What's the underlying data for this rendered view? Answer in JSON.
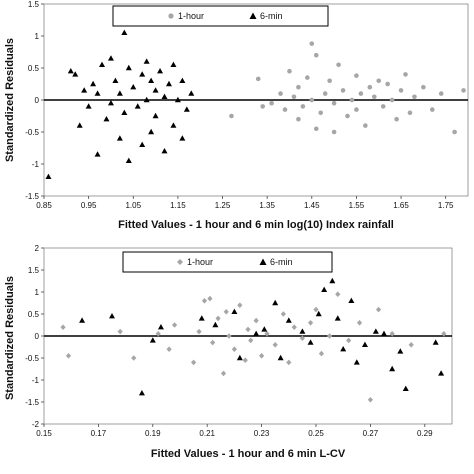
{
  "chart_data": [
    {
      "type": "scatter",
      "xlabel": "Fitted Values - 1 hour and 6 min log(10) Index rainfall",
      "ylabel": "Standardized Residuals",
      "xlim": [
        0.85,
        1.8
      ],
      "ylim": [
        -1.5,
        1.5
      ],
      "xticks": [
        "0.85",
        "0.95",
        "1.05",
        "1.15",
        "1.25",
        "1.35",
        "1.45",
        "1.55",
        "1.65",
        "1.75"
      ],
      "xtick_values": [
        0.85,
        0.95,
        1.05,
        1.15,
        1.25,
        1.35,
        1.45,
        1.55,
        1.65,
        1.75
      ],
      "yticks": [
        "1.5",
        "1",
        "0.5",
        "0",
        "-0.5",
        "-1",
        "-1.5"
      ],
      "ytick_values": [
        1.5,
        1,
        0.5,
        0,
        -0.5,
        -1,
        -1.5
      ],
      "grid": false,
      "legend_position": "top-center",
      "series": [
        {
          "name": "1-hour",
          "marker": "circle",
          "color": "#a6a6a6",
          "points": [
            [
              1.27,
              -0.25
            ],
            [
              1.33,
              0.33
            ],
            [
              1.34,
              -0.1
            ],
            [
              1.36,
              -0.05
            ],
            [
              1.38,
              0.1
            ],
            [
              1.39,
              -0.15
            ],
            [
              1.4,
              0.45
            ],
            [
              1.41,
              0.05
            ],
            [
              1.42,
              -0.3
            ],
            [
              1.42,
              0.2
            ],
            [
              1.43,
              -0.1
            ],
            [
              1.44,
              0.35
            ],
            [
              1.45,
              0.88
            ],
            [
              1.45,
              0.0
            ],
            [
              1.46,
              0.7
            ],
            [
              1.46,
              -0.45
            ],
            [
              1.47,
              -0.2
            ],
            [
              1.48,
              0.1
            ],
            [
              1.49,
              0.3
            ],
            [
              1.5,
              -0.05
            ],
            [
              1.5,
              -0.5
            ],
            [
              1.51,
              0.55
            ],
            [
              1.52,
              0.15
            ],
            [
              1.53,
              -0.25
            ],
            [
              1.54,
              0.0
            ],
            [
              1.55,
              0.38
            ],
            [
              1.55,
              -0.15
            ],
            [
              1.56,
              0.1
            ],
            [
              1.57,
              -0.4
            ],
            [
              1.58,
              0.2
            ],
            [
              1.59,
              0.05
            ],
            [
              1.6,
              0.3
            ],
            [
              1.61,
              -0.1
            ],
            [
              1.62,
              0.25
            ],
            [
              1.63,
              0.0
            ],
            [
              1.64,
              -0.3
            ],
            [
              1.65,
              0.15
            ],
            [
              1.66,
              0.4
            ],
            [
              1.67,
              -0.2
            ],
            [
              1.68,
              0.05
            ],
            [
              1.7,
              0.2
            ],
            [
              1.72,
              -0.15
            ],
            [
              1.74,
              0.1
            ],
            [
              1.77,
              -0.5
            ],
            [
              1.79,
              0.15
            ]
          ]
        },
        {
          "name": "6-min",
          "marker": "triangle",
          "color": "#000000",
          "points": [
            [
              0.86,
              -1.2
            ],
            [
              0.91,
              0.45
            ],
            [
              0.92,
              0.4
            ],
            [
              0.93,
              -0.4
            ],
            [
              0.94,
              0.15
            ],
            [
              0.95,
              -0.1
            ],
            [
              0.96,
              0.25
            ],
            [
              0.97,
              -0.85
            ],
            [
              0.97,
              0.1
            ],
            [
              0.98,
              0.55
            ],
            [
              0.99,
              -0.3
            ],
            [
              1.0,
              0.65
            ],
            [
              1.0,
              -0.05
            ],
            [
              1.01,
              0.3
            ],
            [
              1.02,
              -0.6
            ],
            [
              1.02,
              0.1
            ],
            [
              1.03,
              1.05
            ],
            [
              1.03,
              -0.2
            ],
            [
              1.04,
              0.5
            ],
            [
              1.04,
              -0.95
            ],
            [
              1.05,
              0.2
            ],
            [
              1.06,
              -0.1
            ],
            [
              1.07,
              0.4
            ],
            [
              1.07,
              -0.7
            ],
            [
              1.08,
              0.6
            ],
            [
              1.08,
              0.0
            ],
            [
              1.09,
              0.3
            ],
            [
              1.09,
              -0.5
            ],
            [
              1.1,
              0.15
            ],
            [
              1.1,
              -0.25
            ],
            [
              1.11,
              0.45
            ],
            [
              1.12,
              -0.8
            ],
            [
              1.12,
              0.05
            ],
            [
              1.13,
              0.25
            ],
            [
              1.14,
              -0.4
            ],
            [
              1.14,
              0.55
            ],
            [
              1.15,
              0.0
            ],
            [
              1.16,
              -0.6
            ],
            [
              1.16,
              0.3
            ],
            [
              1.17,
              -0.15
            ],
            [
              1.18,
              0.1
            ]
          ]
        }
      ]
    },
    {
      "type": "scatter",
      "xlabel": "Fitted Values - 1 hour and 6 min L-CV",
      "ylabel": "Standardized Residuals",
      "xlim": [
        0.15,
        0.3
      ],
      "ylim": [
        -2,
        2
      ],
      "xticks": [
        "0.15",
        "0.17",
        "0.19",
        "0.21",
        "0.23",
        "0.25",
        "0.27",
        "0.29"
      ],
      "xtick_values": [
        0.15,
        0.17,
        0.19,
        0.21,
        0.23,
        0.25,
        0.27,
        0.29
      ],
      "yticks": [
        "2",
        "1.5",
        "1",
        "0.5",
        "0",
        "-0.5",
        "-1",
        "-1.5",
        "-2"
      ],
      "ytick_values": [
        2,
        1.5,
        1,
        0.5,
        0,
        -0.5,
        -1,
        -1.5,
        -2
      ],
      "grid": false,
      "legend_position": "top-center",
      "series": [
        {
          "name": "1-hour",
          "marker": "diamond",
          "color": "#a6a6a6",
          "points": [
            [
              0.157,
              0.2
            ],
            [
              0.159,
              -0.45
            ],
            [
              0.178,
              0.1
            ],
            [
              0.183,
              -0.5
            ],
            [
              0.192,
              0.05
            ],
            [
              0.196,
              -0.3
            ],
            [
              0.198,
              0.25
            ],
            [
              0.205,
              -0.6
            ],
            [
              0.207,
              0.1
            ],
            [
              0.209,
              0.8
            ],
            [
              0.211,
              0.85
            ],
            [
              0.212,
              -0.15
            ],
            [
              0.214,
              0.4
            ],
            [
              0.216,
              -0.85
            ],
            [
              0.217,
              0.55
            ],
            [
              0.218,
              0.0
            ],
            [
              0.22,
              -0.3
            ],
            [
              0.222,
              0.7
            ],
            [
              0.224,
              -0.55
            ],
            [
              0.225,
              0.15
            ],
            [
              0.226,
              -0.1
            ],
            [
              0.228,
              0.35
            ],
            [
              0.23,
              -0.45
            ],
            [
              0.232,
              0.05
            ],
            [
              0.235,
              -0.2
            ],
            [
              0.238,
              0.5
            ],
            [
              0.24,
              -0.6
            ],
            [
              0.242,
              0.2
            ],
            [
              0.245,
              -0.05
            ],
            [
              0.248,
              0.3
            ],
            [
              0.25,
              0.6
            ],
            [
              0.252,
              -0.4
            ],
            [
              0.255,
              0.0
            ],
            [
              0.258,
              0.95
            ],
            [
              0.262,
              -0.1
            ],
            [
              0.266,
              0.3
            ],
            [
              0.27,
              -1.45
            ],
            [
              0.273,
              0.6
            ],
            [
              0.278,
              0.05
            ],
            [
              0.285,
              -0.2
            ],
            [
              0.297,
              0.05
            ]
          ]
        },
        {
          "name": "6-min",
          "marker": "triangle",
          "color": "#000000",
          "points": [
            [
              0.164,
              0.35
            ],
            [
              0.175,
              0.45
            ],
            [
              0.186,
              -1.3
            ],
            [
              0.19,
              -0.1
            ],
            [
              0.193,
              0.2
            ],
            [
              0.208,
              0.4
            ],
            [
              0.213,
              0.25
            ],
            [
              0.22,
              0.55
            ],
            [
              0.222,
              -0.5
            ],
            [
              0.228,
              0.05
            ],
            [
              0.231,
              0.15
            ],
            [
              0.235,
              0.75
            ],
            [
              0.237,
              -0.5
            ],
            [
              0.24,
              0.35
            ],
            [
              0.245,
              0.1
            ],
            [
              0.248,
              -0.15
            ],
            [
              0.251,
              0.5
            ],
            [
              0.253,
              1.05
            ],
            [
              0.256,
              1.25
            ],
            [
              0.258,
              0.4
            ],
            [
              0.26,
              -0.3
            ],
            [
              0.263,
              0.8
            ],
            [
              0.265,
              -0.6
            ],
            [
              0.268,
              -0.2
            ],
            [
              0.272,
              0.1
            ],
            [
              0.275,
              0.05
            ],
            [
              0.278,
              -0.75
            ],
            [
              0.281,
              -0.35
            ],
            [
              0.283,
              -1.2
            ],
            [
              0.294,
              -0.15
            ],
            [
              0.296,
              -0.85
            ]
          ]
        }
      ]
    }
  ]
}
